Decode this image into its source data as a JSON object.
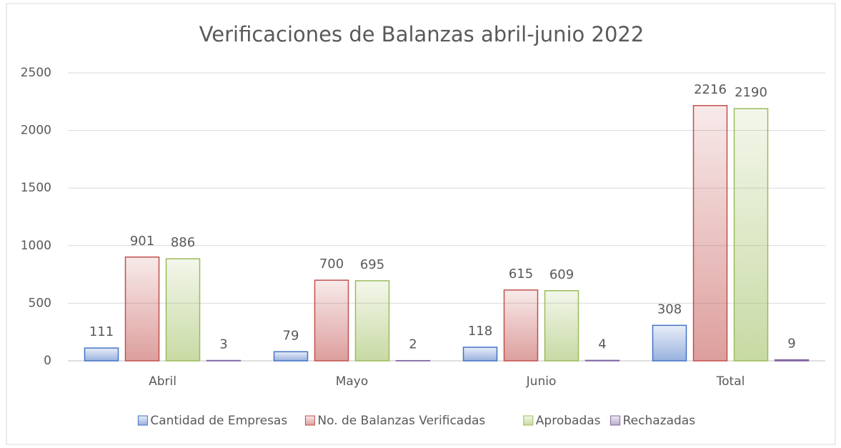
{
  "chart_data": {
    "type": "bar",
    "title": "Verificaciones de Balanzas abril-junio 2022",
    "categories": [
      "Abril",
      "Mayo",
      "Junio",
      "Total"
    ],
    "series": [
      {
        "name": "Cantidad de Empresas",
        "color": "#4472c4",
        "values": [
          111,
          79,
          118,
          308
        ]
      },
      {
        "name": "No. de Balanzas Verificadas",
        "color": "#c0504d",
        "values": [
          901,
          700,
          615,
          2216
        ]
      },
      {
        "name": "Aprobadas",
        "color": "#9bbb59",
        "values": [
          886,
          695,
          609,
          2190
        ]
      },
      {
        "name": "Rechazadas",
        "color": "#8064a2",
        "values": [
          3,
          2,
          4,
          9
        ]
      }
    ],
    "ylim": [
      0,
      2500
    ],
    "yticks": [
      0,
      500,
      1000,
      1500,
      2000,
      2500
    ],
    "grid": true,
    "legend": "bottom"
  }
}
